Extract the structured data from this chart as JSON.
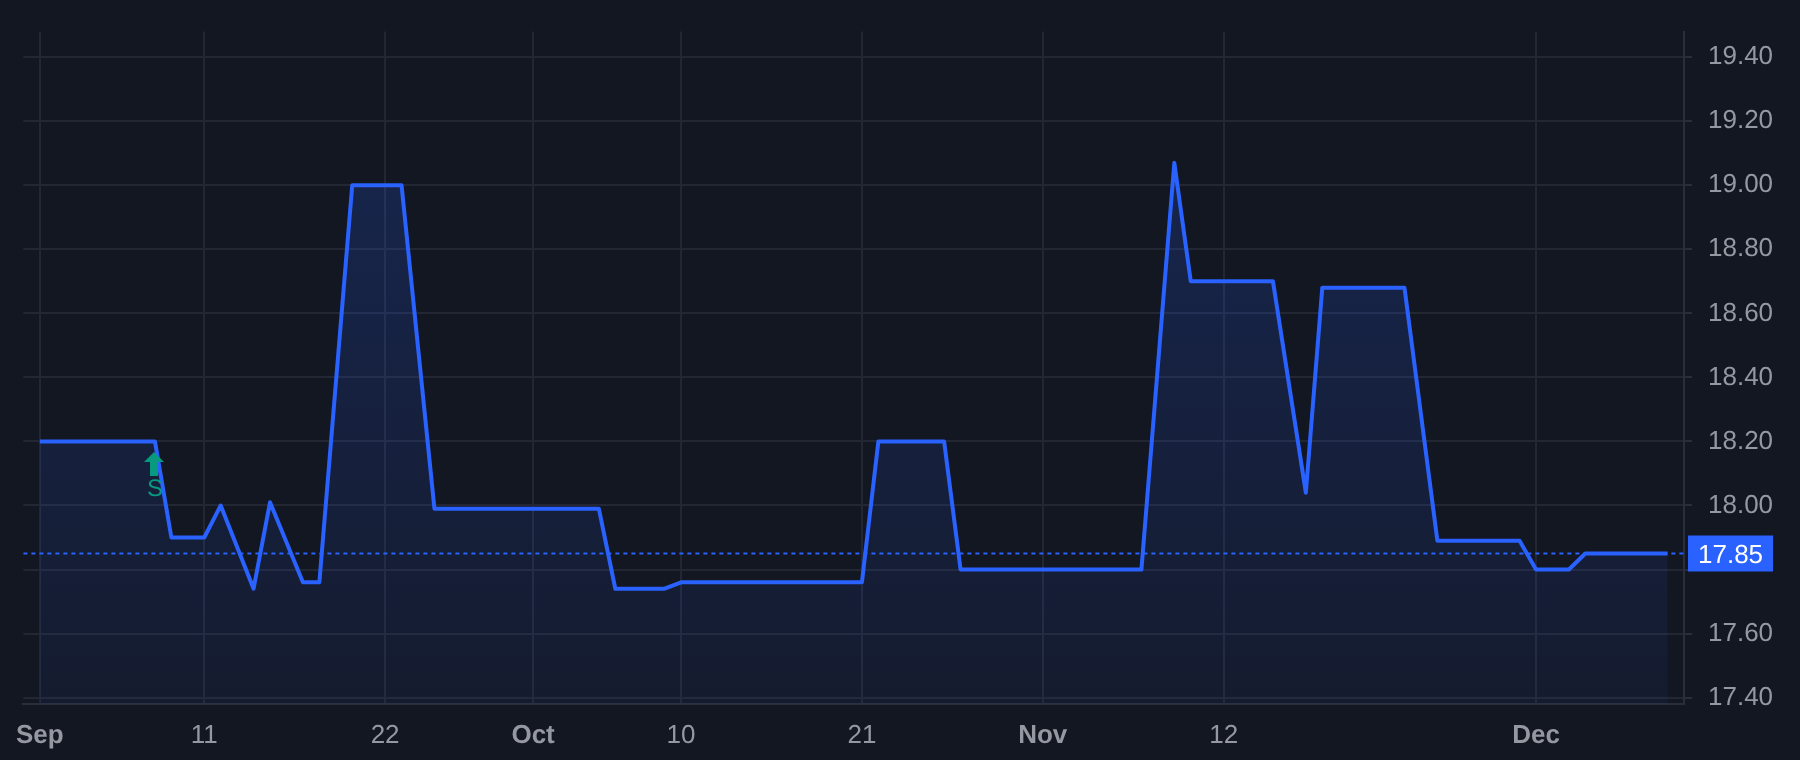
{
  "chart_data": {
    "type": "area",
    "x": [
      "--09-01",
      "--09-08",
      "--09-09",
      "--09-11",
      "--09-12",
      "--09-14",
      "--09-15",
      "--09-17",
      "--09-18",
      "--09-20",
      "--09-23",
      "--09-25",
      "--10-05",
      "--10-06",
      "--10-09",
      "--10-10",
      "--10-21",
      "--10-22",
      "--10-26",
      "--10-27",
      "--11-07",
      "--11-09",
      "--11-10",
      "--11-15",
      "--11-17",
      "--11-18",
      "--11-23",
      "--11-25",
      "--11-30",
      "--12-01",
      "--12-03",
      "--12-04",
      "--12-09"
    ],
    "series": [
      {
        "color": "#2962ff",
        "values": [
          18.2,
          18.2,
          17.9,
          17.9,
          18.0,
          17.74,
          18.01,
          17.76,
          17.76,
          19.0,
          19.0,
          17.99,
          17.99,
          17.74,
          17.74,
          17.76,
          17.76,
          18.2,
          18.2,
          17.8,
          17.8,
          19.07,
          18.7,
          18.7,
          18.04,
          18.68,
          18.68,
          17.89,
          17.89,
          17.8,
          17.8,
          17.85,
          17.85
        ]
      }
    ],
    "xlim": [
      "--08-31",
      "--12-10"
    ],
    "xticks": [
      {
        "value": "--09-01",
        "label": "Sep"
      },
      {
        "value": "--09-11",
        "label": "11"
      },
      {
        "value": "--09-22",
        "label": "22"
      },
      {
        "value": "--10-01",
        "label": "Oct"
      },
      {
        "value": "--10-10",
        "label": "10"
      },
      {
        "value": "--10-21",
        "label": "21"
      },
      {
        "value": "--11-01",
        "label": "Nov"
      },
      {
        "value": "--11-12",
        "label": "12"
      },
      {
        "value": "--12-01",
        "label": "Dec"
      }
    ],
    "ylim": [
      17.38,
      19.48
    ],
    "yticks": [
      {
        "value": 17.4,
        "label": "17.40"
      },
      {
        "value": 17.6,
        "label": "17.60"
      },
      {
        "value": 17.8,
        "label": null
      },
      {
        "value": 18.0,
        "label": "18.00"
      },
      {
        "value": 18.2,
        "label": "18.20"
      },
      {
        "value": 18.4,
        "label": "18.40"
      },
      {
        "value": 18.6,
        "label": "18.60"
      },
      {
        "value": 18.8,
        "label": "18.80"
      },
      {
        "value": 19.0,
        "label": "19.00"
      },
      {
        "value": 19.2,
        "label": "19.20"
      },
      {
        "value": 19.4,
        "label": "19.40"
      }
    ],
    "ref_lines": [
      {
        "axis": "y",
        "value": 17.85,
        "label": "17.85",
        "color": "#2962ff",
        "line_style": "dotted"
      }
    ],
    "annotations": [
      {
        "text": "S",
        "x": "--09-08",
        "y": 18.2
      }
    ],
    "grid": true,
    "legend": false,
    "marker": "none",
    "line_style": "solid"
  }
}
